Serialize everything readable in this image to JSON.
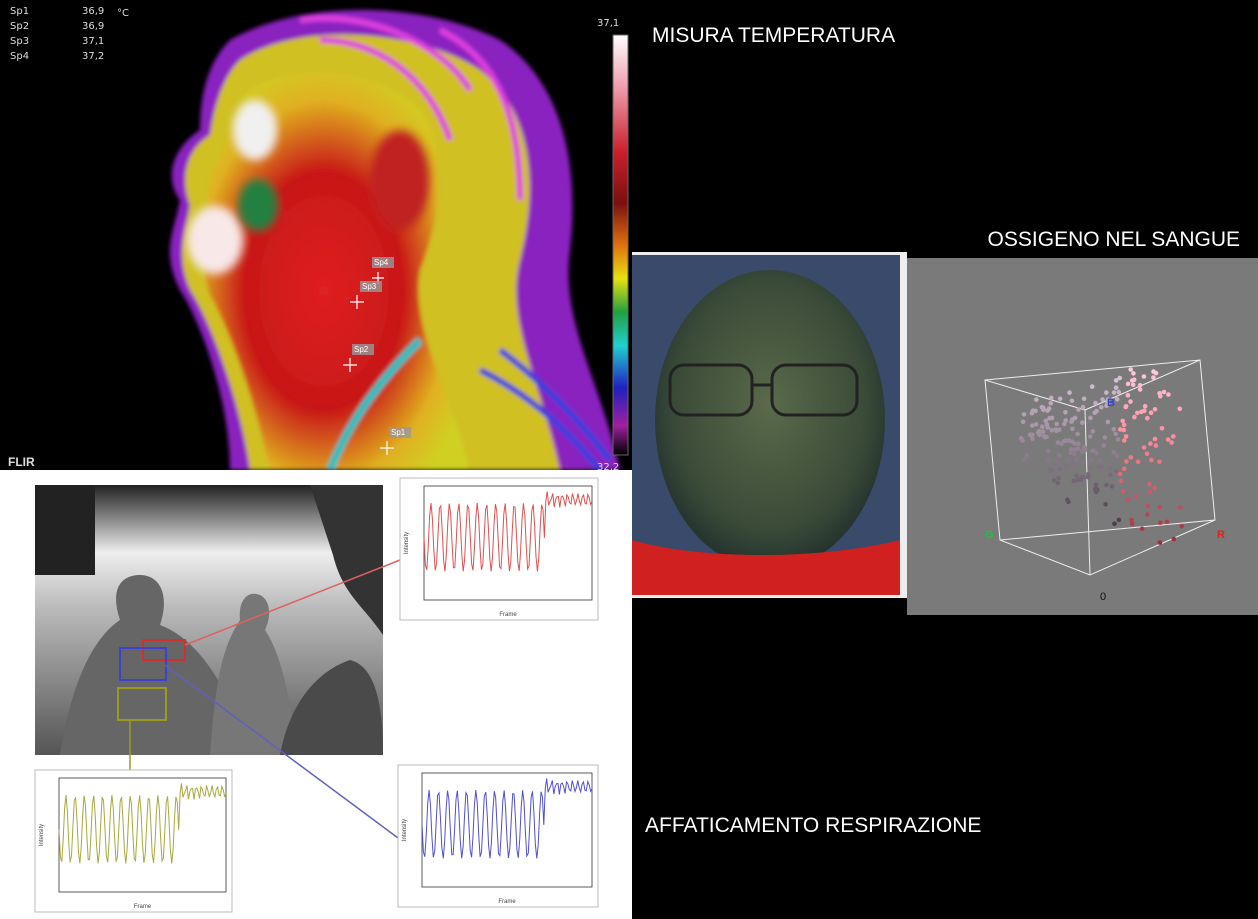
{
  "headings": {
    "temperature": "MISURA TEMPERATURA",
    "oxygen": "OSSIGENO NEL SANGUE",
    "breathing": "AFFATICAMENTO RESPIRAZIONE"
  },
  "thermal": {
    "readings": [
      {
        "spot": "Sp1",
        "value": "36,9",
        "unit": "°C"
      },
      {
        "spot": "Sp2",
        "value": "36,9"
      },
      {
        "spot": "Sp3",
        "value": "37,1"
      },
      {
        "spot": "Sp4",
        "value": "37,2"
      }
    ],
    "scale_max": "37,1",
    "scale_min": "32,2",
    "brand": "FLIR",
    "spot_markers": [
      "Sp4",
      "Sp3",
      "Sp2",
      "Sp1"
    ]
  },
  "rgb_cube": {
    "axes": [
      "B",
      "G",
      "R"
    ],
    "origin": "0"
  },
  "plots": [
    {
      "x_label": "Frame",
      "y_label": "Intensity"
    },
    {
      "x_label": "Frame",
      "y_label": "Intensity"
    },
    {
      "x_label": "Frame",
      "y_label": "Intensity"
    }
  ]
}
